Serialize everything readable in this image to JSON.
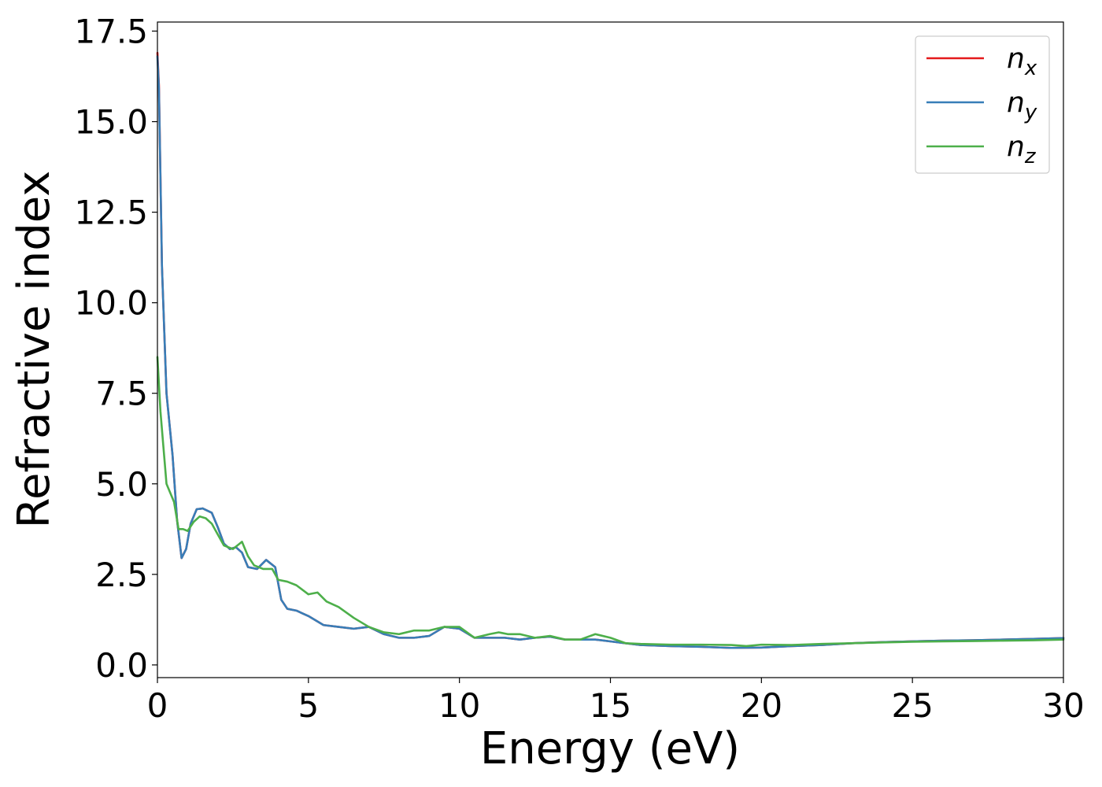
{
  "chart_data": {
    "type": "line",
    "title": "",
    "xlabel": "Energy (eV)",
    "ylabel": "Refractive index",
    "xlim": [
      0,
      30
    ],
    "ylim": [
      -0.35,
      17.75
    ],
    "xticks": [
      0,
      5,
      10,
      15,
      20,
      25,
      30
    ],
    "xtick_labels": [
      "0",
      "5",
      "10",
      "15",
      "20",
      "25",
      "30"
    ],
    "yticks": [
      0,
      2.5,
      5,
      7.5,
      10,
      12.5,
      15,
      17.5
    ],
    "ytick_labels": [
      "0.0",
      "2.5",
      "5.0",
      "7.5",
      "10.0",
      "12.5",
      "15.0",
      "17.5"
    ],
    "grid": false,
    "legend_position": "top-right",
    "series": [
      {
        "name": "n_x",
        "legend_base": "n",
        "legend_sub": "x",
        "color": "#e41a1c",
        "x": [
          0,
          0.05,
          0.15,
          0.3,
          0.5,
          0.65,
          0.8,
          0.95,
          1.1,
          1.3,
          1.5,
          1.8,
          2.0,
          2.2,
          2.4,
          2.6,
          2.8,
          3.0,
          3.3,
          3.6,
          3.9,
          4.1,
          4.3,
          4.6,
          5.0,
          5.5,
          6.0,
          6.5,
          7.0,
          7.5,
          8.0,
          8.5,
          9.0,
          9.5,
          10.0,
          10.5,
          11.0,
          11.5,
          12.0,
          12.5,
          13.0,
          13.5,
          14.0,
          14.5,
          15.0,
          15.5,
          16.0,
          17.0,
          18.0,
          19.0,
          20.0,
          21.0,
          22.0,
          23.0,
          24.0,
          25.0,
          26.0,
          27.0,
          28.0,
          29.0,
          30.0
        ],
        "values": [
          16.9,
          16.0,
          11.0,
          7.5,
          5.8,
          4.0,
          2.95,
          3.2,
          3.9,
          4.3,
          4.32,
          4.2,
          3.8,
          3.35,
          3.2,
          3.25,
          3.1,
          2.7,
          2.65,
          2.9,
          2.7,
          1.8,
          1.55,
          1.5,
          1.35,
          1.1,
          1.05,
          1.0,
          1.05,
          0.85,
          0.75,
          0.75,
          0.8,
          1.05,
          1.0,
          0.75,
          0.75,
          0.75,
          0.7,
          0.75,
          0.78,
          0.7,
          0.7,
          0.7,
          0.65,
          0.6,
          0.55,
          0.52,
          0.5,
          0.47,
          0.48,
          0.52,
          0.55,
          0.6,
          0.63,
          0.65,
          0.67,
          0.68,
          0.7,
          0.72,
          0.74
        ]
      },
      {
        "name": "n_y",
        "legend_base": "n",
        "legend_sub": "y",
        "color": "#377eb8",
        "x": [
          0,
          0.05,
          0.15,
          0.3,
          0.5,
          0.65,
          0.8,
          0.95,
          1.1,
          1.3,
          1.5,
          1.8,
          2.0,
          2.2,
          2.4,
          2.6,
          2.8,
          3.0,
          3.3,
          3.6,
          3.9,
          4.1,
          4.3,
          4.6,
          5.0,
          5.5,
          6.0,
          6.5,
          7.0,
          7.5,
          8.0,
          8.5,
          9.0,
          9.5,
          10.0,
          10.5,
          11.0,
          11.5,
          12.0,
          12.5,
          13.0,
          13.5,
          14.0,
          14.5,
          15.0,
          15.5,
          16.0,
          17.0,
          18.0,
          19.0,
          20.0,
          21.0,
          22.0,
          23.0,
          24.0,
          25.0,
          26.0,
          27.0,
          28.0,
          29.0,
          30.0
        ],
        "values": [
          16.8,
          15.9,
          11.0,
          7.5,
          5.8,
          4.0,
          2.95,
          3.2,
          3.9,
          4.3,
          4.32,
          4.2,
          3.8,
          3.35,
          3.2,
          3.25,
          3.1,
          2.7,
          2.65,
          2.9,
          2.7,
          1.8,
          1.55,
          1.5,
          1.35,
          1.1,
          1.05,
          1.0,
          1.05,
          0.85,
          0.75,
          0.75,
          0.8,
          1.05,
          1.0,
          0.75,
          0.75,
          0.75,
          0.7,
          0.75,
          0.78,
          0.7,
          0.7,
          0.7,
          0.65,
          0.6,
          0.55,
          0.52,
          0.5,
          0.47,
          0.48,
          0.52,
          0.55,
          0.6,
          0.63,
          0.65,
          0.67,
          0.68,
          0.7,
          0.72,
          0.74
        ]
      },
      {
        "name": "n_z",
        "legend_base": "n",
        "legend_sub": "z",
        "color": "#4daf4a",
        "x": [
          0,
          0.1,
          0.2,
          0.3,
          0.4,
          0.55,
          0.7,
          0.85,
          1.0,
          1.2,
          1.4,
          1.6,
          1.8,
          2.0,
          2.2,
          2.5,
          2.8,
          3.0,
          3.2,
          3.5,
          3.8,
          4.0,
          4.3,
          4.6,
          5.0,
          5.3,
          5.6,
          6.0,
          6.5,
          7.0,
          7.5,
          8.0,
          8.5,
          9.0,
          9.5,
          10.0,
          10.5,
          11.0,
          11.3,
          11.6,
          12.0,
          12.5,
          13.0,
          13.5,
          14.0,
          14.5,
          15.0,
          15.5,
          16.0,
          17.0,
          18.0,
          19.0,
          19.5,
          20.0,
          21.0,
          22.0,
          23.0,
          24.0,
          25.0,
          26.0,
          27.0,
          28.0,
          29.0,
          30.0
        ],
        "values": [
          8.5,
          7.0,
          6.0,
          5.0,
          4.8,
          4.5,
          3.75,
          3.75,
          3.7,
          3.95,
          4.1,
          4.05,
          3.9,
          3.6,
          3.3,
          3.2,
          3.4,
          3.0,
          2.75,
          2.65,
          2.65,
          2.35,
          2.3,
          2.2,
          1.95,
          2.0,
          1.75,
          1.6,
          1.3,
          1.05,
          0.9,
          0.85,
          0.95,
          0.95,
          1.05,
          1.05,
          0.75,
          0.85,
          0.9,
          0.85,
          0.85,
          0.75,
          0.8,
          0.7,
          0.7,
          0.85,
          0.75,
          0.6,
          0.58,
          0.56,
          0.56,
          0.55,
          0.52,
          0.56,
          0.55,
          0.58,
          0.6,
          0.62,
          0.64,
          0.65,
          0.66,
          0.67,
          0.68,
          0.7
        ]
      }
    ]
  }
}
